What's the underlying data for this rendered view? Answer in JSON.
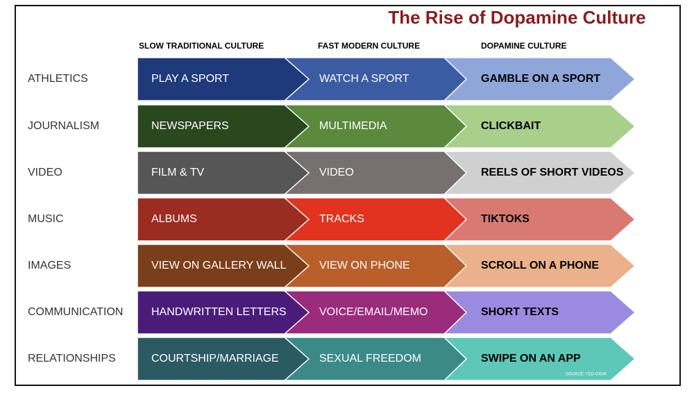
{
  "title": "The Rise of Dopamine Culture",
  "columns": [
    "SLOW TRADITIONAL CULTURE",
    "FAST MODERN CULTURE",
    "DOPAMINE CULTURE"
  ],
  "rows": [
    {
      "label": "ATHLETICS",
      "cells": [
        "PLAY A SPORT",
        "WATCH A SPORT",
        "GAMBLE ON A SPORT"
      ],
      "colors": [
        "#1f3a7a",
        "#3b5ca3",
        "#8fa6da"
      ]
    },
    {
      "label": "JOURNALISM",
      "cells": [
        "NEWSPAPERS",
        "MULTIMEDIA",
        "CLICKBAIT"
      ],
      "colors": [
        "#2a481e",
        "#5b8a3d",
        "#a9d08b"
      ]
    },
    {
      "label": "VIDEO",
      "cells": [
        "FILM &  TV",
        "VIDEO",
        "REELS OF SHORT VIDEOS"
      ],
      "colors": [
        "#565656",
        "#767070",
        "#d0d0d0"
      ]
    },
    {
      "label": "MUSIC",
      "cells": [
        "ALBUMS",
        "TRACKS",
        "TIKTOKS"
      ],
      "colors": [
        "#9a2c22",
        "#e1331f",
        "#d97a72"
      ]
    },
    {
      "label": "IMAGES",
      "cells": [
        "VIEW ON GALLERY WALL",
        "VIEW ON PHONE",
        "SCROLL ON A PHONE"
      ],
      "colors": [
        "#7a3f1a",
        "#b85f2a",
        "#eab18b"
      ]
    },
    {
      "label": "COMMUNICATION",
      "cells": [
        "HANDWRITTEN LETTERS",
        "VOICE/EMAIL/MEMO",
        "SHORT TEXTS"
      ],
      "colors": [
        "#4b1b7a",
        "#9b2b7b",
        "#9b8be0"
      ]
    },
    {
      "label": "RELATIONSHIPS",
      "cells": [
        "COURTSHIP/MARRIAGE",
        "SEXUAL FREEDOM",
        "SWIPE ON AN APP"
      ],
      "colors": [
        "#2b5a62",
        "#3b8a88",
        "#5dc8b8"
      ]
    }
  ],
  "source": "SOURCE: TED GIOIA"
}
